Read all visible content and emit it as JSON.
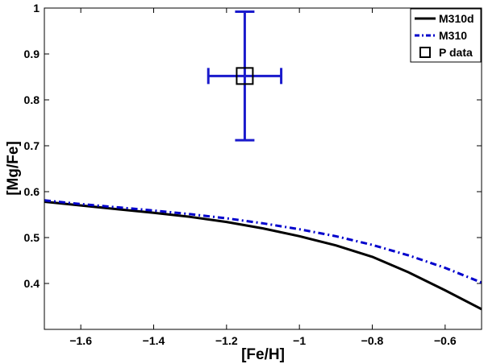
{
  "chart_data": {
    "type": "line",
    "xlabel": "[Fe/H]",
    "ylabel": "[Mg/Fe]",
    "xlim": [
      -1.7,
      -0.5
    ],
    "ylim": [
      0.3,
      1.0
    ],
    "xticks": [
      -1.6,
      -1.4,
      -1.2,
      -1,
      -0.8,
      -0.6
    ],
    "xtick_labels": [
      "−1.6",
      "−1.4",
      "−1.2",
      "−1",
      "−0.8",
      "−0.6"
    ],
    "yticks": [
      0.4,
      0.5,
      0.6,
      0.7,
      0.8,
      0.9,
      1.0
    ],
    "ytick_labels": [
      "0.4",
      "0.5",
      "0.6",
      "0.7",
      "0.8",
      "0.9",
      "1"
    ],
    "grid": false,
    "legend_position": "top-right",
    "series": [
      {
        "name": "M310d",
        "style": "solid",
        "color": "#000000",
        "x": [
          -1.7,
          -1.6,
          -1.5,
          -1.4,
          -1.3,
          -1.2,
          -1.1,
          -1.0,
          -0.9,
          -0.8,
          -0.7,
          -0.6,
          -0.5
        ],
        "y": [
          0.578,
          0.57,
          0.562,
          0.554,
          0.545,
          0.534,
          0.52,
          0.503,
          0.483,
          0.458,
          0.424,
          0.385,
          0.344
        ]
      },
      {
        "name": "M310",
        "style": "dash-dot",
        "color": "#0000cc",
        "x": [
          -1.7,
          -1.6,
          -1.5,
          -1.4,
          -1.3,
          -1.2,
          -1.1,
          -1.0,
          -0.9,
          -0.8,
          -0.7,
          -0.6,
          -0.5
        ],
        "y": [
          0.581,
          0.573,
          0.566,
          0.559,
          0.551,
          0.542,
          0.531,
          0.518,
          0.503,
          0.484,
          0.461,
          0.434,
          0.402
        ]
      }
    ],
    "points": [
      {
        "name": "P data",
        "marker": "square",
        "x": -1.15,
        "y": 0.852,
        "xerr": 0.1,
        "yerr": 0.14,
        "errorbar_color": "#1a1acc",
        "marker_color": "#000000"
      }
    ]
  }
}
